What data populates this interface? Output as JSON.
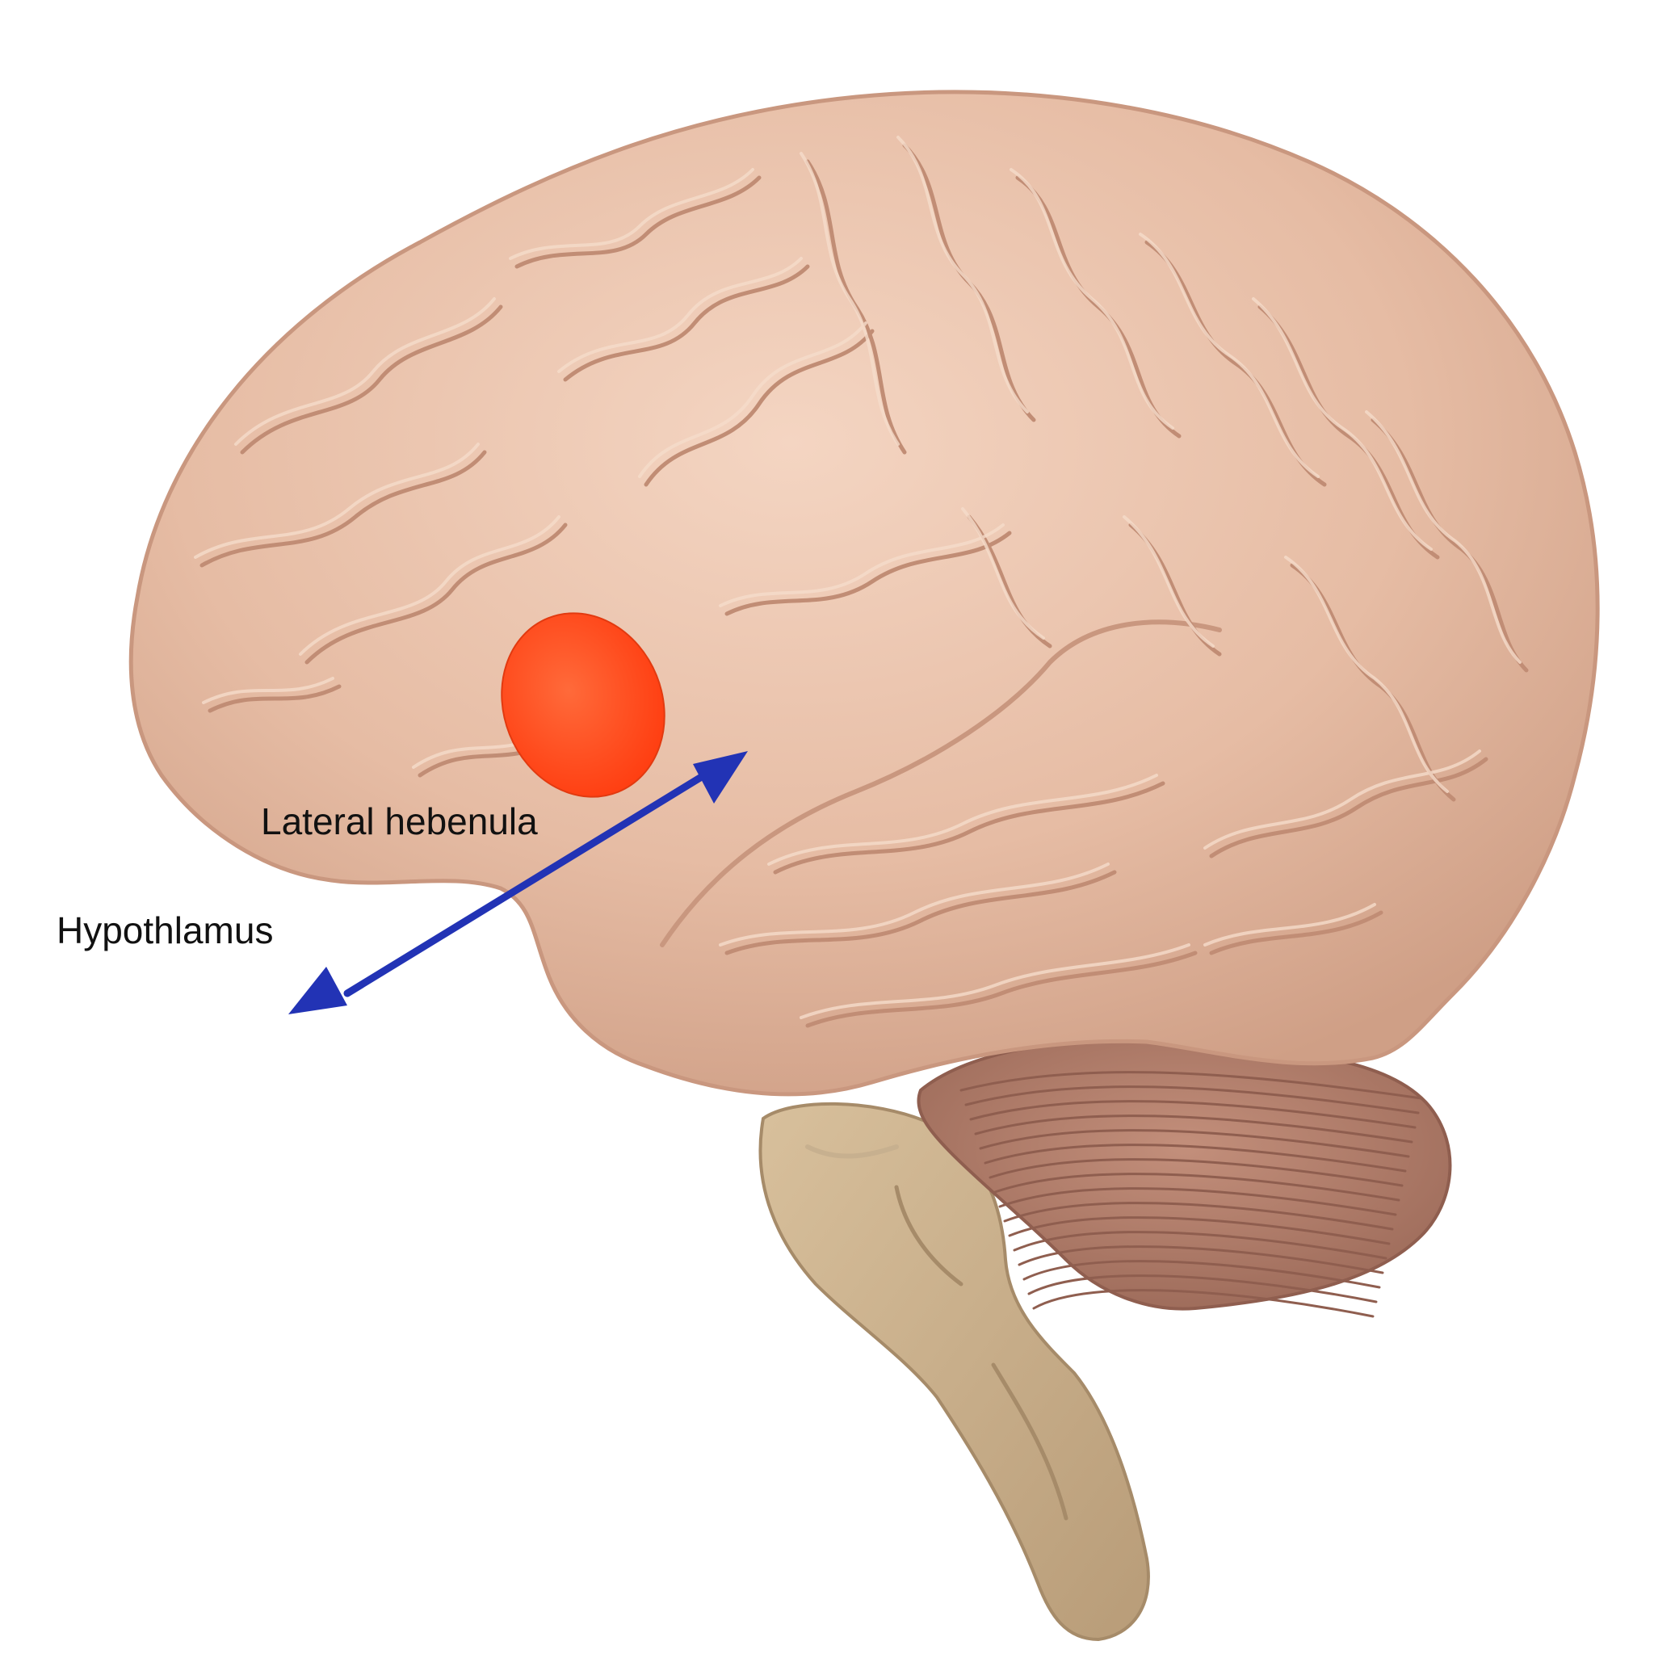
{
  "labels": {
    "lateral_habenula": "Lateral hebenula",
    "hypothalamus": "Hypothlamus"
  },
  "illustration": {
    "subject": "brain-lateral-view",
    "colors": {
      "cortex": "#e8c0a8",
      "cortex_shadow": "#c9977f",
      "cortex_highlight": "#f6dccb",
      "cerebellum": "#b47f6c",
      "cerebellum_line": "#8f5e4f",
      "brainstem": "#c6ab88",
      "brainstem_shadow": "#a68b69",
      "highlight_region": "#ff4a1c",
      "arrow": "#2233b5",
      "background": "#ffffff"
    }
  },
  "icons": {
    "highlight": "highlight-region-ellipse",
    "connection": "double-headed-arrow"
  }
}
